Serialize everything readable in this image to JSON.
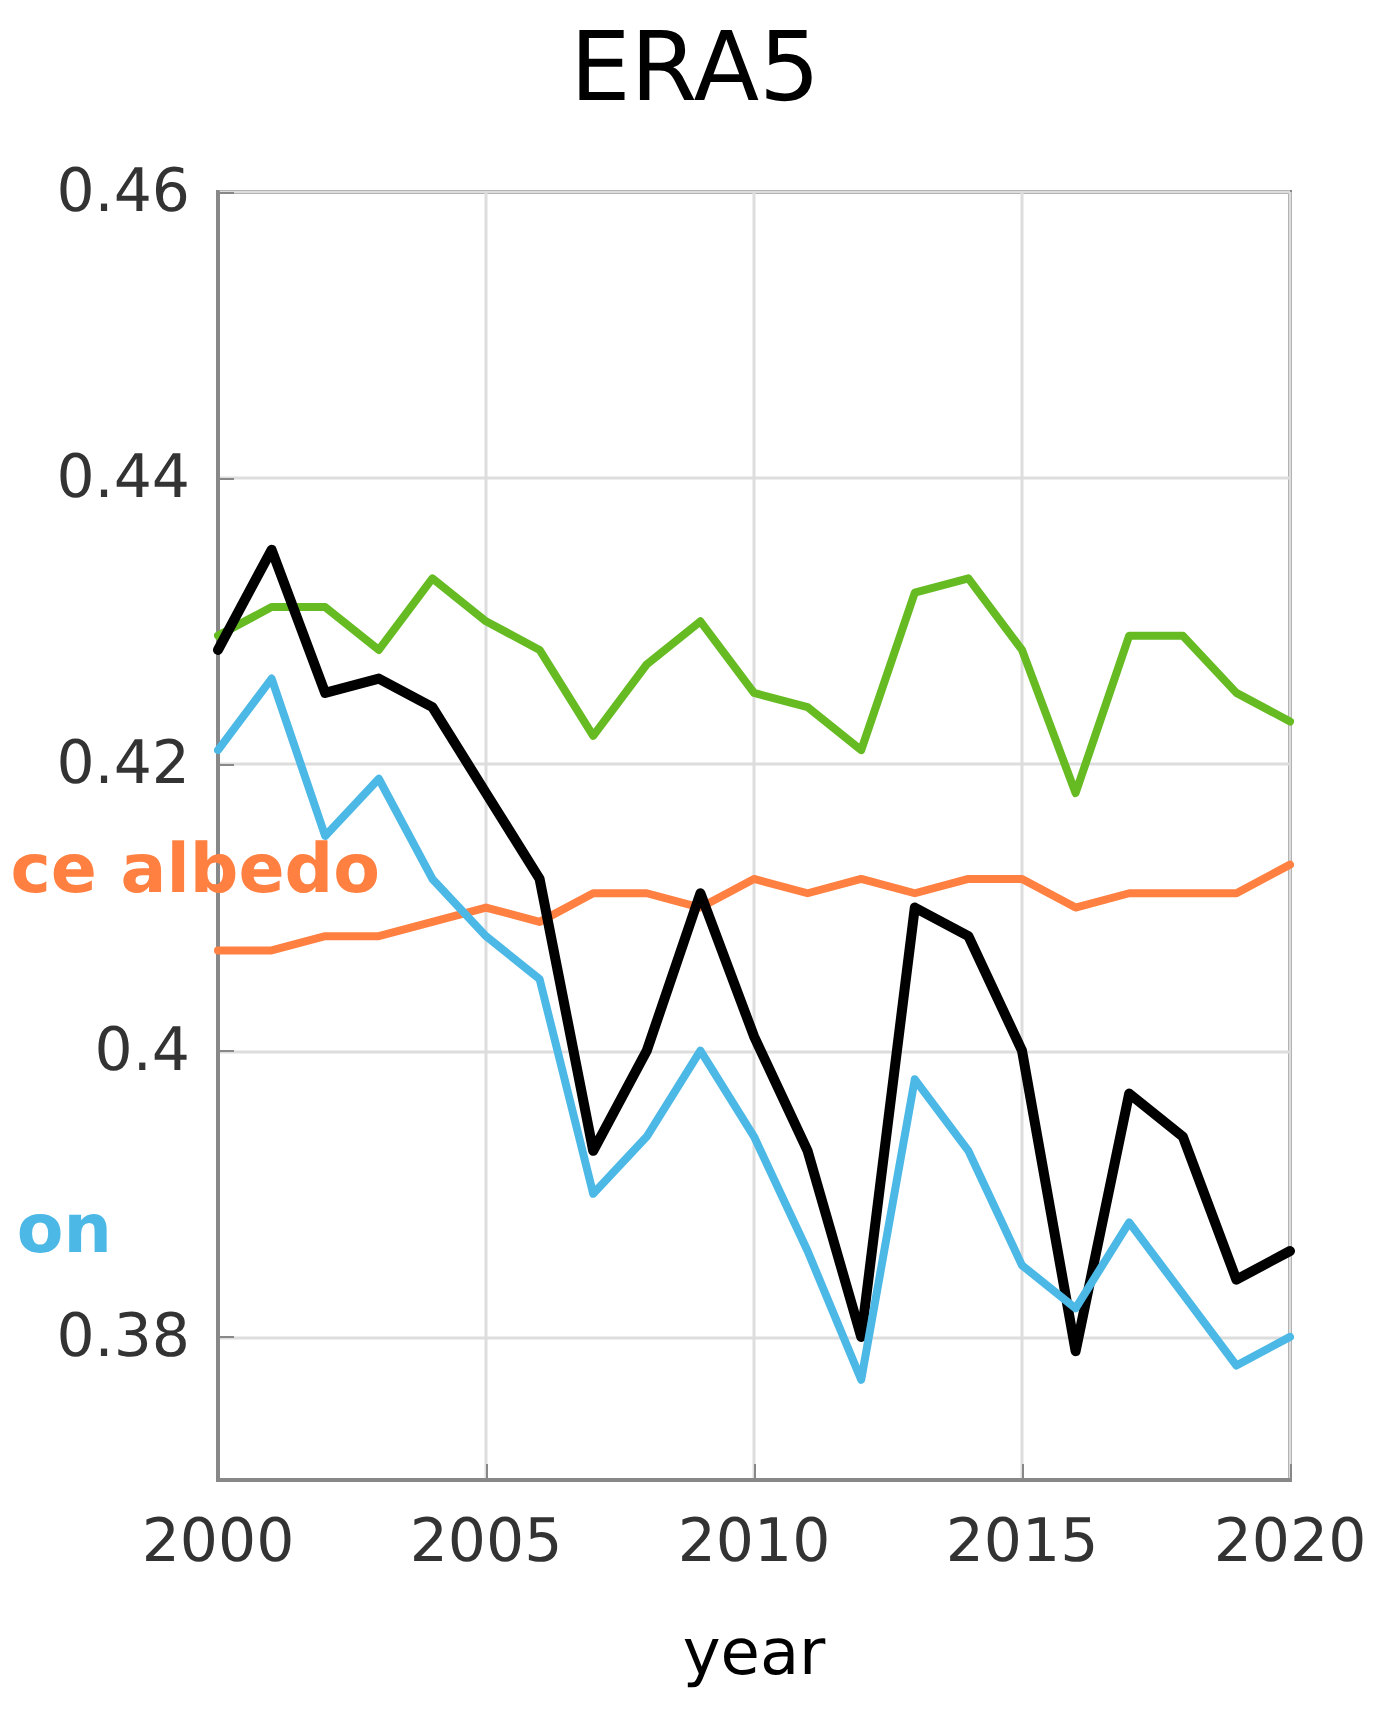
{
  "chart_data": {
    "type": "line",
    "title": "ERA5",
    "xlabel": "year",
    "x": [
      2000,
      2001,
      2002,
      2003,
      2004,
      2005,
      2006,
      2007,
      2008,
      2009,
      2010,
      2011,
      2012,
      2013,
      2014,
      2015,
      2016,
      2017,
      2018,
      2019,
      2020
    ],
    "series": [
      {
        "color": "#66bb22",
        "values": [
          0.429,
          0.431,
          0.431,
          0.428,
          0.433,
          0.43,
          0.428,
          0.422,
          0.427,
          0.43,
          0.425,
          0.424,
          0.421,
          0.432,
          0.433,
          0.428,
          0.418,
          0.429,
          0.429,
          0.425,
          0.423
        ]
      },
      {
        "name": "ce albedo",
        "color": "#ff8040",
        "values": [
          0.407,
          0.407,
          0.408,
          0.408,
          0.409,
          0.41,
          0.409,
          0.411,
          0.411,
          0.41,
          0.412,
          0.411,
          0.412,
          0.411,
          0.412,
          0.412,
          0.41,
          0.411,
          0.411,
          0.411,
          0.413
        ]
      },
      {
        "color": "#000000",
        "values": [
          0.428,
          0.435,
          0.425,
          0.426,
          0.424,
          0.418,
          0.412,
          0.393,
          0.4,
          0.411,
          0.401,
          0.393,
          0.38,
          0.41,
          0.408,
          0.4,
          0.379,
          0.397,
          0.394,
          0.384,
          0.386
        ]
      },
      {
        "name": "on",
        "color": "#4cb8e6",
        "values": [
          0.421,
          0.426,
          0.415,
          0.419,
          0.412,
          0.408,
          0.405,
          0.39,
          0.394,
          0.4,
          0.394,
          0.386,
          0.377,
          0.398,
          0.393,
          0.385,
          0.382,
          0.388,
          0.383,
          0.378,
          0.38
        ]
      }
    ],
    "xlim": [
      2000,
      2020
    ],
    "xticks": [
      2000,
      2005,
      2010,
      2015,
      2020
    ],
    "ylim": [
      0.37,
      0.46
    ],
    "yticks": [
      0.38,
      0.4,
      0.42,
      0.44,
      0.46
    ],
    "grid": true,
    "legend": false,
    "marker": "none",
    "line_style": "solid"
  }
}
